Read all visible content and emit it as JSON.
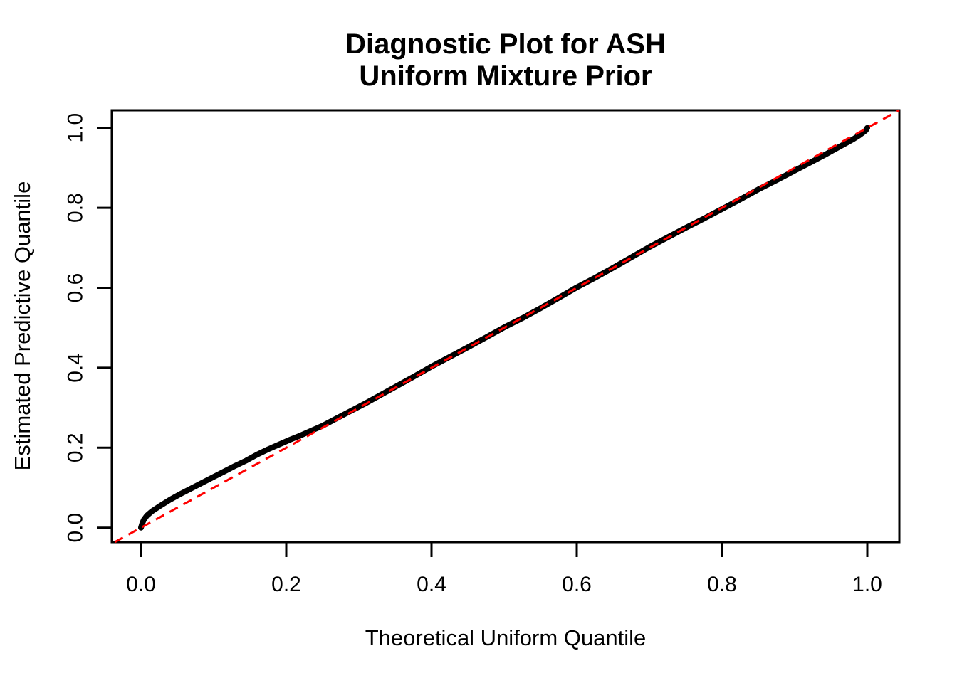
{
  "colors": {
    "background": "#FFFFFF",
    "axis": "#000000",
    "curve": "#000000",
    "reference_line": "#FF0000",
    "text": "#000000"
  },
  "chart_data": {
    "type": "line",
    "title": "Diagnostic Plot for ASH",
    "subtitle": "Uniform Mixture Prior",
    "xlabel": "Theoretical Uniform Quantile",
    "ylabel": "Estimated Predictive Quantile",
    "xlim": [
      -0.04,
      1.04
    ],
    "ylim": [
      -0.04,
      1.04
    ],
    "xticks": [
      0.0,
      0.2,
      0.4,
      0.6,
      0.8,
      1.0
    ],
    "yticks": [
      0.0,
      0.2,
      0.4,
      0.6,
      0.8,
      1.0
    ],
    "xtick_labels": [
      "0.0",
      "0.2",
      "0.4",
      "0.6",
      "0.8",
      "1.0"
    ],
    "ytick_labels": [
      "0.0",
      "0.2",
      "0.4",
      "0.6",
      "0.8",
      "1.0"
    ],
    "grid": false,
    "legend": "none",
    "series": [
      {
        "name": "estimated-predictive-quantiles",
        "type": "qq-curve",
        "color": "#000000",
        "line_width": 8,
        "points": [
          [
            0.0,
            0.0
          ],
          [
            0.002,
            0.012
          ],
          [
            0.004,
            0.02
          ],
          [
            0.008,
            0.03
          ],
          [
            0.015,
            0.041
          ],
          [
            0.025,
            0.053
          ],
          [
            0.04,
            0.07
          ],
          [
            0.055,
            0.085
          ],
          [
            0.07,
            0.099
          ],
          [
            0.085,
            0.113
          ],
          [
            0.1,
            0.127
          ],
          [
            0.115,
            0.141
          ],
          [
            0.13,
            0.155
          ],
          [
            0.145,
            0.168
          ],
          [
            0.16,
            0.183
          ],
          [
            0.175,
            0.196
          ],
          [
            0.19,
            0.208
          ],
          [
            0.205,
            0.22
          ],
          [
            0.22,
            0.231
          ],
          [
            0.235,
            0.243
          ],
          [
            0.25,
            0.255
          ],
          [
            0.27,
            0.274
          ],
          [
            0.29,
            0.293
          ],
          [
            0.31,
            0.312
          ],
          [
            0.33,
            0.332
          ],
          [
            0.35,
            0.352
          ],
          [
            0.375,
            0.377
          ],
          [
            0.4,
            0.403
          ],
          [
            0.425,
            0.427
          ],
          [
            0.45,
            0.451
          ],
          [
            0.475,
            0.476
          ],
          [
            0.5,
            0.501
          ],
          [
            0.525,
            0.524
          ],
          [
            0.55,
            0.549
          ],
          [
            0.575,
            0.575
          ],
          [
            0.6,
            0.601
          ],
          [
            0.625,
            0.625
          ],
          [
            0.65,
            0.65
          ],
          [
            0.675,
            0.676
          ],
          [
            0.7,
            0.702
          ],
          [
            0.725,
            0.726
          ],
          [
            0.75,
            0.75
          ],
          [
            0.775,
            0.773
          ],
          [
            0.8,
            0.797
          ],
          [
            0.825,
            0.821
          ],
          [
            0.85,
            0.846
          ],
          [
            0.875,
            0.869
          ],
          [
            0.9,
            0.893
          ],
          [
            0.92,
            0.912
          ],
          [
            0.94,
            0.931
          ],
          [
            0.955,
            0.946
          ],
          [
            0.97,
            0.961
          ],
          [
            0.98,
            0.971
          ],
          [
            0.988,
            0.98
          ],
          [
            0.994,
            0.988
          ],
          [
            0.998,
            0.994
          ],
          [
            1.0,
            1.0
          ]
        ]
      },
      {
        "name": "identity-reference-line",
        "type": "abline",
        "intercept": 0,
        "slope": 1,
        "color": "#FF0000",
        "style": "dashed",
        "line_width": 3,
        "x_range": [
          -0.0361,
          1.044
        ]
      }
    ]
  }
}
